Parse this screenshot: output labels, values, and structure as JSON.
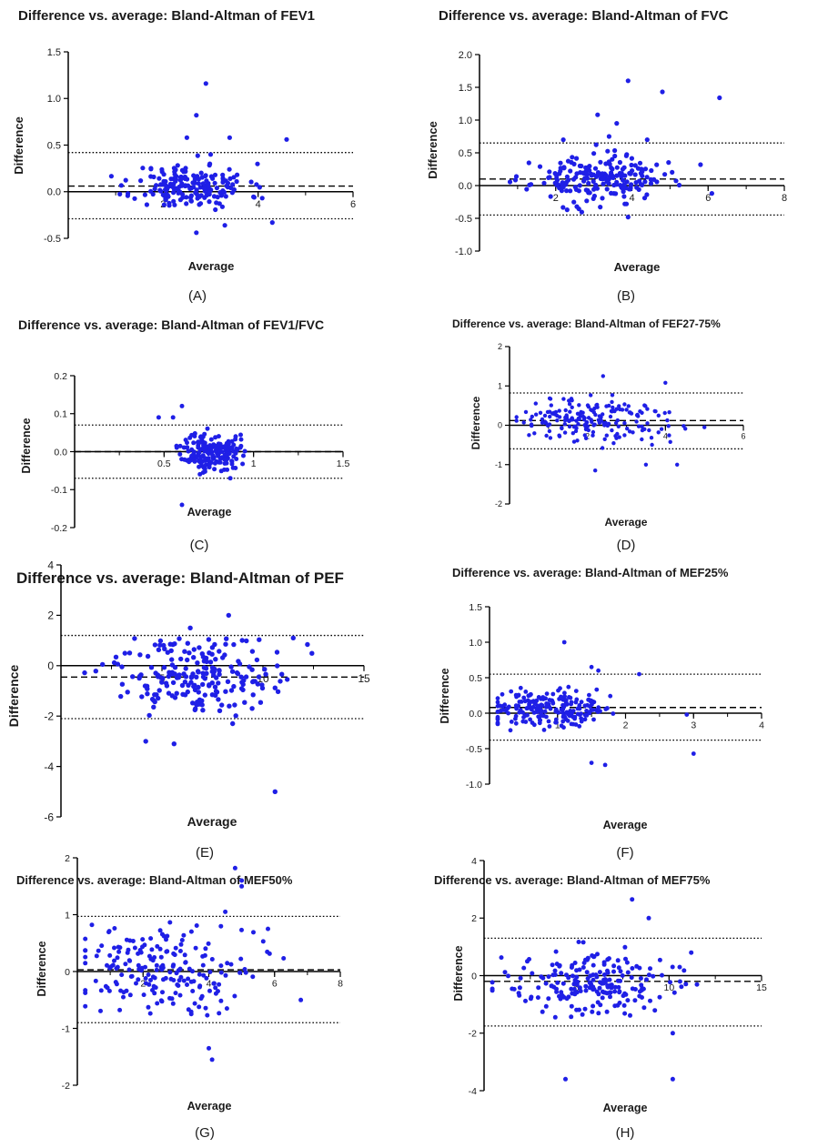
{
  "figure": {
    "point_color": "#1f1fe6",
    "axis_color": "#000000"
  },
  "chart_data": [
    {
      "type": "scatter",
      "title": "Difference vs. average: Bland-Altman of FEV1",
      "panel_label": "(A)",
      "xlabel": "Average",
      "ylabel": "Difference",
      "xlim": [
        0,
        6
      ],
      "ylim": [
        -0.5,
        1.5
      ],
      "xticks": [
        2,
        4,
        6
      ],
      "yticks": [
        -0.5,
        0.0,
        0.5,
        1.0,
        1.5
      ],
      "ytick_labels": [
        "-0.5",
        "0.0",
        "0.5",
        "1.0",
        "1.5"
      ],
      "bias": 0.06,
      "limits_of_agreement": [
        -0.29,
        0.42
      ],
      "grid": false,
      "scatter_seed": 11,
      "scatter_n": 190,
      "x_mean": 2.6,
      "x_sd": 0.6,
      "y_sd": 0.12,
      "outliers": [
        [
          2.9,
          1.16
        ],
        [
          2.7,
          0.82
        ],
        [
          2.5,
          0.58
        ],
        [
          3.4,
          0.58
        ],
        [
          4.6,
          0.56
        ],
        [
          2.7,
          -0.44
        ],
        [
          3.3,
          -0.36
        ],
        [
          4.3,
          -0.33
        ],
        [
          3.0,
          0.4
        ]
      ]
    },
    {
      "type": "scatter",
      "title": "Difference vs. average: Bland-Altman of FVC",
      "panel_label": "(B)",
      "xlabel": "Average",
      "ylabel": "Difference",
      "xlim": [
        0,
        8
      ],
      "ylim": [
        -1.0,
        2.0
      ],
      "xticks": [
        2,
        4,
        6,
        8
      ],
      "yticks": [
        -1.0,
        -0.5,
        0.0,
        0.5,
        1.0,
        1.5,
        2.0
      ],
      "ytick_labels": [
        "-1.0",
        "-0.5",
        "0.0",
        "0.5",
        "1.0",
        "1.5",
        "2.0"
      ],
      "bias": 0.1,
      "limits_of_agreement": [
        -0.45,
        0.65
      ],
      "grid": false,
      "scatter_seed": 23,
      "scatter_n": 200,
      "x_mean": 3.1,
      "x_sd": 0.85,
      "y_sd": 0.17,
      "outliers": [
        [
          3.9,
          1.6
        ],
        [
          4.8,
          1.43
        ],
        [
          6.3,
          1.34
        ],
        [
          3.1,
          1.08
        ],
        [
          3.6,
          0.95
        ],
        [
          3.4,
          0.75
        ],
        [
          4.4,
          0.7
        ],
        [
          2.2,
          0.7
        ],
        [
          3.9,
          -0.48
        ],
        [
          2.3,
          -0.37
        ],
        [
          5.8,
          0.32
        ],
        [
          6.1,
          -0.12
        ]
      ]
    },
    {
      "type": "scatter",
      "title": "Difference vs. average: Bland-Altman of FEV1/FVC",
      "panel_label": "(C)",
      "xlabel": "Average",
      "ylabel": "Difference",
      "xlim": [
        0,
        1.5
      ],
      "ylim": [
        -0.2,
        0.2
      ],
      "xticks": [
        0.5,
        1.0,
        1.5
      ],
      "yticks": [
        -0.2,
        -0.1,
        0.0,
        0.1,
        0.2
      ],
      "ytick_labels": [
        "-0.2",
        "-0.1",
        "0.0",
        "0.1",
        "0.2"
      ],
      "bias": 0.0,
      "limits_of_agreement": [
        -0.07,
        0.07
      ],
      "grid": false,
      "scatter_seed": 37,
      "scatter_n": 190,
      "x_mean": 0.76,
      "x_sd": 0.08,
      "y_sd": 0.025,
      "outliers": [
        [
          0.6,
          0.12
        ],
        [
          0.6,
          -0.14
        ],
        [
          0.47,
          0.09
        ],
        [
          0.55,
          0.09
        ],
        [
          0.9,
          0.04
        ],
        [
          0.87,
          -0.07
        ]
      ]
    },
    {
      "type": "scatter",
      "title": "Difference vs. average: Bland-Altman of FEF27-75%",
      "panel_label": "(D)",
      "xlabel": "Average",
      "ylabel": "Difference",
      "xlim": [
        0,
        6
      ],
      "ylim": [
        -2,
        2
      ],
      "xticks": [
        2,
        4,
        6
      ],
      "yticks": [
        -2,
        -1,
        0,
        1,
        2
      ],
      "ytick_labels": [
        "-2",
        "-1",
        "0",
        "1",
        "2"
      ],
      "bias": 0.12,
      "limits_of_agreement": [
        -0.6,
        0.82
      ],
      "grid": false,
      "scatter_seed": 51,
      "scatter_n": 190,
      "x_mean": 2.1,
      "x_sd": 1.0,
      "y_sd": 0.3,
      "outliers": [
        [
          2.4,
          1.25
        ],
        [
          4.0,
          1.08
        ],
        [
          2.2,
          -1.15
        ],
        [
          3.5,
          -1.0
        ],
        [
          4.3,
          -1.0
        ],
        [
          5.0,
          -0.05
        ]
      ]
    },
    {
      "type": "scatter",
      "title": "Difference vs. average: Bland-Altman of PEF",
      "panel_label": "(E)",
      "xlabel": "Average",
      "ylabel": "Difference",
      "xlim": [
        0,
        15
      ],
      "ylim": [
        -6,
        4
      ],
      "xticks": [
        5,
        10,
        15
      ],
      "yticks": [
        -6,
        -4,
        -2,
        0,
        2,
        4
      ],
      "ytick_labels": [
        "-6",
        "-4",
        "-2",
        "0",
        "2",
        "4"
      ],
      "bias": -0.45,
      "limits_of_agreement": [
        -2.1,
        1.2
      ],
      "grid": false,
      "scatter_seed": 67,
      "scatter_n": 210,
      "x_mean": 6.6,
      "x_sd": 2.1,
      "y_sd": 0.75,
      "outliers": [
        [
          10.6,
          -5.0
        ],
        [
          8.3,
          2.0
        ],
        [
          6.4,
          1.5
        ],
        [
          4.2,
          -3.0
        ],
        [
          5.6,
          -3.1
        ],
        [
          8.5,
          -2.3
        ],
        [
          11.5,
          1.1
        ]
      ]
    },
    {
      "type": "scatter",
      "title": "Difference vs. average: Bland-Altman of MEF25%",
      "panel_label": "(F)",
      "xlabel": "Average",
      "ylabel": "Difference",
      "xlim": [
        0,
        4
      ],
      "ylim": [
        -1.0,
        1.5
      ],
      "xticks": [
        1,
        2,
        3,
        4
      ],
      "yticks": [
        -1.0,
        -0.5,
        0.0,
        0.5,
        1.0,
        1.5
      ],
      "ytick_labels": [
        "-1.0",
        "-0.5",
        "0.0",
        "0.5",
        "1.0",
        "1.5"
      ],
      "bias": 0.08,
      "limits_of_agreement": [
        -0.38,
        0.55
      ],
      "grid": false,
      "scatter_seed": 79,
      "scatter_n": 210,
      "x_mean": 0.85,
      "x_sd": 0.45,
      "y_sd": 0.13,
      "outliers": [
        [
          1.1,
          1.0
        ],
        [
          1.5,
          0.65
        ],
        [
          1.6,
          0.6
        ],
        [
          2.2,
          0.55
        ],
        [
          1.5,
          -0.7
        ],
        [
          1.7,
          -0.73
        ],
        [
          3.0,
          -0.57
        ],
        [
          2.9,
          -0.02
        ]
      ]
    },
    {
      "type": "scatter",
      "title": "Difference vs. average: Bland-Altman of MEF50%",
      "panel_label": "(G)",
      "xlabel": "Average",
      "ylabel": "Difference",
      "xlim": [
        0,
        8
      ],
      "ylim": [
        -2,
        2
      ],
      "xticks": [
        2,
        4,
        6,
        8
      ],
      "yticks": [
        -2,
        -1,
        0,
        1,
        2
      ],
      "ytick_labels": [
        "-2",
        "-1",
        "0",
        "1",
        "2"
      ],
      "bias": 0.03,
      "limits_of_agreement": [
        -0.9,
        0.97
      ],
      "grid": false,
      "scatter_seed": 91,
      "scatter_n": 200,
      "x_mean": 2.5,
      "x_sd": 1.3,
      "y_sd": 0.4,
      "outliers": [
        [
          4.8,
          1.82
        ],
        [
          5.0,
          1.6
        ],
        [
          5.0,
          1.5
        ],
        [
          4.5,
          1.05
        ],
        [
          4.1,
          -1.55
        ],
        [
          4.0,
          -1.35
        ],
        [
          6.8,
          -0.5
        ],
        [
          5.8,
          0.75
        ]
      ]
    },
    {
      "type": "scatter",
      "title": "Difference vs. average: Bland-Altman of MEF75%",
      "panel_label": "(H)",
      "xlabel": "Average",
      "ylabel": "Difference",
      "xlim": [
        0,
        15
      ],
      "ylim": [
        -4,
        4
      ],
      "xticks": [
        5,
        10,
        15
      ],
      "yticks": [
        -4,
        -2,
        0,
        2,
        4
      ],
      "ytick_labels": [
        "-4",
        "-2",
        "0",
        "2",
        "4"
      ],
      "bias": -0.2,
      "limits_of_agreement": [
        -1.75,
        1.3
      ],
      "grid": false,
      "scatter_seed": 103,
      "scatter_n": 210,
      "x_mean": 5.8,
      "x_sd": 2.1,
      "y_sd": 0.6,
      "outliers": [
        [
          8.0,
          2.65
        ],
        [
          8.9,
          2.0
        ],
        [
          4.4,
          -3.6
        ],
        [
          10.2,
          -3.6
        ],
        [
          10.2,
          -2.0
        ],
        [
          11.2,
          0.8
        ]
      ]
    }
  ]
}
